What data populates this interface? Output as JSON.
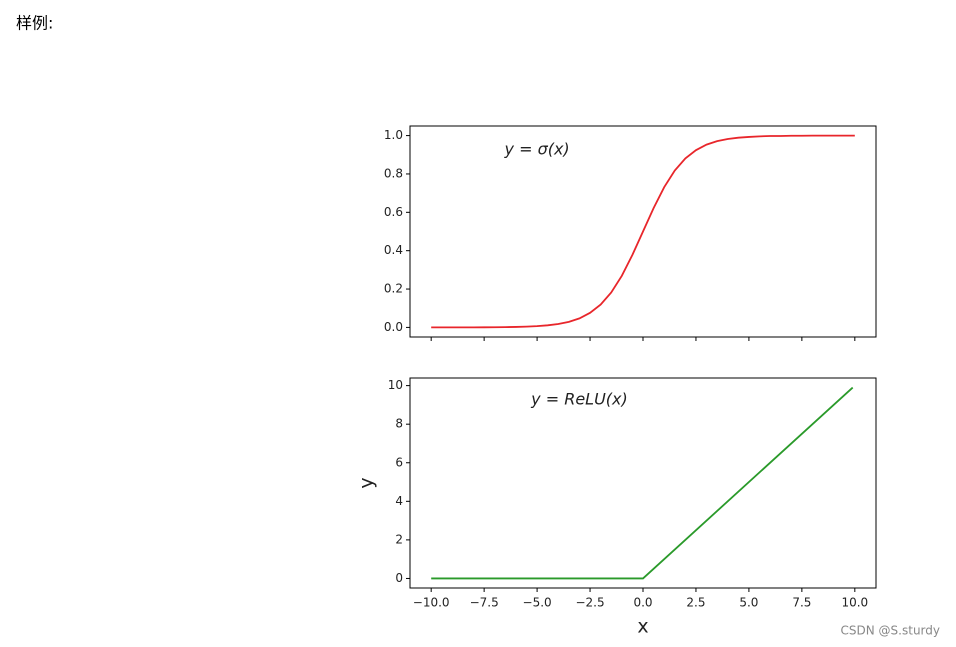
{
  "header": {
    "title": "样例:"
  },
  "watermark": "CSDN @S.sturdy",
  "chart_data": [
    {
      "type": "line",
      "annotation": "y = σ(x)",
      "show_xtick_labels": false,
      "x": [
        -10,
        -9.5,
        -9,
        -8.5,
        -8,
        -7.5,
        -7,
        -6.5,
        -6,
        -5.5,
        -5,
        -4.5,
        -4,
        -3.5,
        -3,
        -2.5,
        -2,
        -1.5,
        -1,
        -0.5,
        0,
        0.5,
        1,
        1.5,
        2,
        2.5,
        3,
        3.5,
        4,
        4.5,
        5,
        5.5,
        6,
        6.5,
        7,
        7.5,
        8,
        8.5,
        9,
        9.5,
        10
      ],
      "series": [
        {
          "name": "sigmoid",
          "color": "#e8262b",
          "values": [
            0.0,
            0.0001,
            0.0001,
            0.0002,
            0.0003,
            0.0006,
            0.0009,
            0.0015,
            0.0025,
            0.0041,
            0.0067,
            0.011,
            0.018,
            0.029,
            0.047,
            0.076,
            0.119,
            0.182,
            0.269,
            0.378,
            0.5,
            0.622,
            0.731,
            0.818,
            0.881,
            0.924,
            0.953,
            0.971,
            0.982,
            0.989,
            0.993,
            0.996,
            0.998,
            0.998,
            0.999,
            0.999,
            1.0,
            1.0,
            1.0,
            1.0,
            1.0
          ]
        }
      ],
      "xlim": [
        -11,
        11
      ],
      "xticks": [
        -10,
        -7.5,
        -5,
        -2.5,
        0,
        2.5,
        5,
        7.5,
        10
      ],
      "ylim": [
        -0.05,
        1.05
      ],
      "yticks": [
        {
          "value": 0,
          "label": "0.0"
        },
        {
          "value": 0.2,
          "label": "0.2"
        },
        {
          "value": 0.4,
          "label": "0.4"
        },
        {
          "value": 0.6,
          "label": "0.6"
        },
        {
          "value": 0.8,
          "label": "0.8"
        },
        {
          "value": 1,
          "label": "1.0"
        }
      ]
    },
    {
      "type": "line",
      "annotation": "y = ReLU(x)",
      "show_xtick_labels": true,
      "xlabel": "x",
      "ylabel": "y",
      "x": [
        -10,
        0,
        9.9
      ],
      "series": [
        {
          "name": "relu",
          "color": "#2a9a2a",
          "values": [
            0,
            0,
            9.9
          ]
        }
      ],
      "xlim": [
        -11,
        11
      ],
      "xticks": [
        {
          "value": -10,
          "label": "−10.0"
        },
        {
          "value": -7.5,
          "label": "−7.5"
        },
        {
          "value": -5,
          "label": "−5.0"
        },
        {
          "value": -2.5,
          "label": "−2.5"
        },
        {
          "value": 0,
          "label": "0.0"
        },
        {
          "value": 2.5,
          "label": "2.5"
        },
        {
          "value": 5,
          "label": "5.0"
        },
        {
          "value": 7.5,
          "label": "7.5"
        },
        {
          "value": 10,
          "label": "10.0"
        }
      ],
      "ylim": [
        -0.495,
        10.395
      ],
      "yticks": [
        0,
        2,
        4,
        6,
        8,
        10
      ]
    }
  ]
}
